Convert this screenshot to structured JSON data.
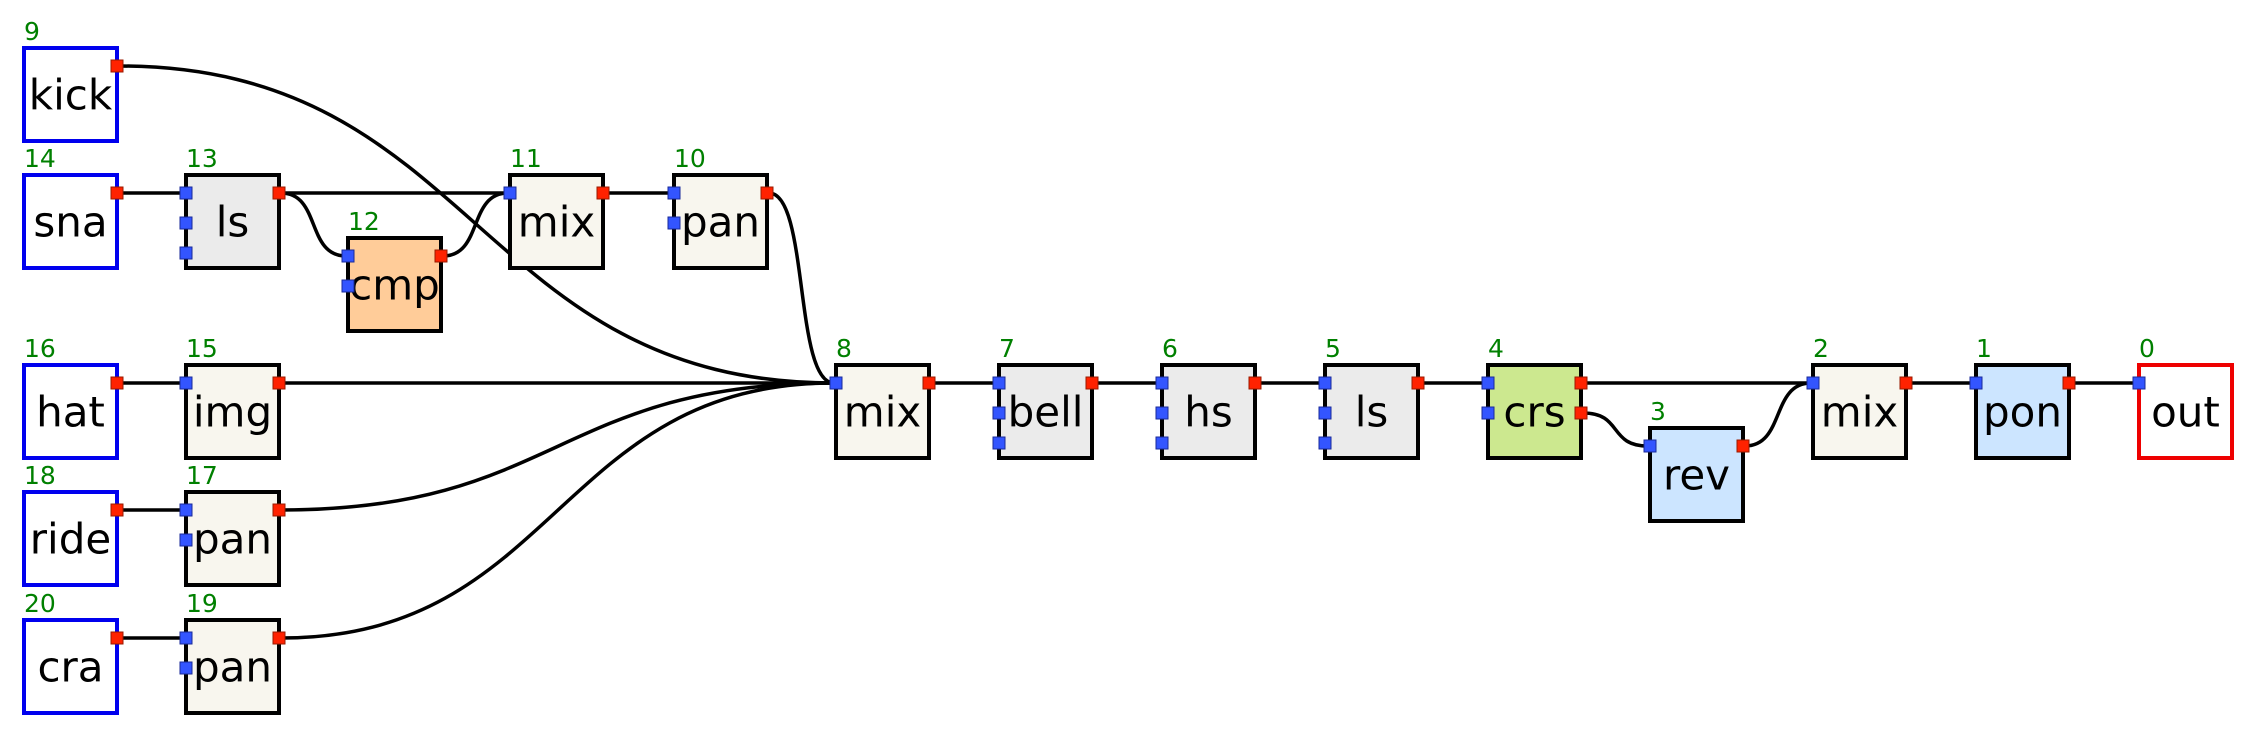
{
  "graph": {
    "nodes": [
      {
        "id": "9",
        "label": "kick",
        "kind": "source",
        "color": "#ffffff",
        "border": "#0000ee",
        "inputs": 0,
        "outputs": 1
      },
      {
        "id": "14",
        "label": "sna",
        "kind": "source",
        "color": "#ffffff",
        "border": "#0000ee",
        "inputs": 0,
        "outputs": 1
      },
      {
        "id": "13",
        "label": "ls",
        "kind": "filter",
        "color": "#ebebeb",
        "border": "#000000",
        "inputs": 3,
        "outputs": 1
      },
      {
        "id": "12",
        "label": "cmp",
        "kind": "dynamics",
        "color": "#ffcc99",
        "border": "#000000",
        "inputs": 2,
        "outputs": 1
      },
      {
        "id": "11",
        "label": "mix",
        "kind": "mixer",
        "color": "#f8f6ee",
        "border": "#000000",
        "inputs": 1,
        "outputs": 1
      },
      {
        "id": "10",
        "label": "pan",
        "kind": "mixer",
        "color": "#f8f6ee",
        "border": "#000000",
        "inputs": 2,
        "outputs": 1
      },
      {
        "id": "16",
        "label": "hat",
        "kind": "source",
        "color": "#ffffff",
        "border": "#0000ee",
        "inputs": 0,
        "outputs": 1
      },
      {
        "id": "15",
        "label": "img",
        "kind": "mixer",
        "color": "#f8f6ee",
        "border": "#000000",
        "inputs": 1,
        "outputs": 1
      },
      {
        "id": "18",
        "label": "ride",
        "kind": "source",
        "color": "#ffffff",
        "border": "#0000ee",
        "inputs": 0,
        "outputs": 1
      },
      {
        "id": "17",
        "label": "pan",
        "kind": "mixer",
        "color": "#f8f6ee",
        "border": "#000000",
        "inputs": 2,
        "outputs": 1
      },
      {
        "id": "20",
        "label": "cra",
        "kind": "source",
        "color": "#ffffff",
        "border": "#0000ee",
        "inputs": 0,
        "outputs": 1
      },
      {
        "id": "19",
        "label": "pan",
        "kind": "mixer",
        "color": "#f8f6ee",
        "border": "#000000",
        "inputs": 2,
        "outputs": 1
      },
      {
        "id": "8",
        "label": "mix",
        "kind": "mixer",
        "color": "#f8f6ee",
        "border": "#000000",
        "inputs": 1,
        "outputs": 1
      },
      {
        "id": "7",
        "label": "bell",
        "kind": "filter",
        "color": "#ebebeb",
        "border": "#000000",
        "inputs": 3,
        "outputs": 1
      },
      {
        "id": "6",
        "label": "hs",
        "kind": "filter",
        "color": "#ebebeb",
        "border": "#000000",
        "inputs": 3,
        "outputs": 1
      },
      {
        "id": "5",
        "label": "ls",
        "kind": "filter",
        "color": "#ebebeb",
        "border": "#000000",
        "inputs": 3,
        "outputs": 1
      },
      {
        "id": "4",
        "label": "crs",
        "kind": "crossover",
        "color": "#cce88f",
        "border": "#000000",
        "inputs": 2,
        "outputs": 2
      },
      {
        "id": "3",
        "label": "rev",
        "kind": "effect",
        "color": "#cce5ff",
        "border": "#000000",
        "inputs": 1,
        "outputs": 1
      },
      {
        "id": "2",
        "label": "mix",
        "kind": "mixer",
        "color": "#f8f6ee",
        "border": "#000000",
        "inputs": 1,
        "outputs": 1
      },
      {
        "id": "1",
        "label": "pon",
        "kind": "effect",
        "color": "#cce5ff",
        "border": "#000000",
        "inputs": 1,
        "outputs": 1
      },
      {
        "id": "0",
        "label": "out",
        "kind": "sink",
        "color": "#ffffff",
        "border": "#ee0000",
        "inputs": 1,
        "outputs": 0
      }
    ],
    "edges": [
      {
        "from": "9",
        "to": "8"
      },
      {
        "from": "14",
        "to": "13"
      },
      {
        "from": "13",
        "to": "11"
      },
      {
        "from": "13",
        "to": "12"
      },
      {
        "from": "12",
        "to": "11"
      },
      {
        "from": "11",
        "to": "10"
      },
      {
        "from": "10",
        "to": "8"
      },
      {
        "from": "16",
        "to": "15"
      },
      {
        "from": "15",
        "to": "8"
      },
      {
        "from": "18",
        "to": "17"
      },
      {
        "from": "17",
        "to": "8"
      },
      {
        "from": "20",
        "to": "19"
      },
      {
        "from": "19",
        "to": "8"
      },
      {
        "from": "8",
        "to": "7"
      },
      {
        "from": "7",
        "to": "6"
      },
      {
        "from": "6",
        "to": "5"
      },
      {
        "from": "5",
        "to": "4"
      },
      {
        "from": "4",
        "to": "2"
      },
      {
        "from": "4",
        "to": "3",
        "from_port": 1
      },
      {
        "from": "3",
        "to": "2"
      },
      {
        "from": "2",
        "to": "1"
      },
      {
        "from": "1",
        "to": "0"
      }
    ],
    "port_colors": {
      "input": "#3355ff",
      "output": "#ff2200"
    },
    "edge_color": "#000000"
  }
}
